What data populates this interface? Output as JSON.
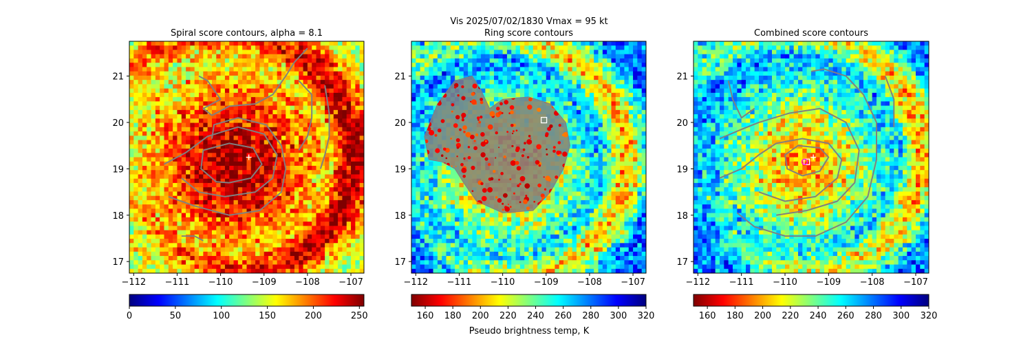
{
  "figure": {
    "suptitle_line1": "Vis  2025/07/02/1830    Vmax = 95 kt",
    "colorbar_label": "Pseudo brightness temp, K"
  },
  "colors": {
    "contour": "#808080",
    "marker": "#ffffff",
    "center_marker": "#ff00ff",
    "jet": [
      "#00007f",
      "#0000ff",
      "#007fff",
      "#00ffff",
      "#7fff7f",
      "#ffff00",
      "#ff7f00",
      "#ff0000",
      "#7f0000"
    ]
  },
  "chart_data": [
    {
      "type": "heatmap",
      "title": "Spiral score contours, alpha =  8.1",
      "xlim": [
        -112.1,
        -106.7
      ],
      "ylim": [
        16.75,
        21.75
      ],
      "xticks": [
        -112,
        -111,
        -110,
        -109,
        -108,
        -107
      ],
      "yticks": [
        17,
        18,
        19,
        20,
        21
      ],
      "xtick_labels": [
        "−112",
        "−111",
        "−110",
        "−109",
        "−108",
        "−107"
      ],
      "ytick_labels": [
        "17",
        "18",
        "19",
        "20",
        "21"
      ],
      "field": "inverted",
      "storm_center": [
        -109.7,
        19.1
      ],
      "markers": [
        {
          "symbol": "+",
          "lon": -109.35,
          "lat": 19.25
        }
      ],
      "contours": [
        [
          [
            -109.8,
            18.7
          ],
          [
            -109.3,
            18.8
          ],
          [
            -109.05,
            19.1
          ],
          [
            -109.25,
            19.45
          ],
          [
            -109.8,
            19.55
          ],
          [
            -110.4,
            19.4
          ],
          [
            -110.45,
            19.0
          ],
          [
            -110.1,
            18.72
          ],
          [
            -109.8,
            18.7
          ]
        ],
        [
          [
            -111.3,
            19.1
          ],
          [
            -110.8,
            19.35
          ],
          [
            -110.3,
            19.7
          ],
          [
            -109.6,
            19.9
          ],
          [
            -109.0,
            19.75
          ],
          [
            -108.7,
            19.3
          ],
          [
            -108.8,
            18.8
          ],
          [
            -109.2,
            18.5
          ],
          [
            -109.9,
            18.4
          ],
          [
            -110.5,
            18.5
          ],
          [
            -110.9,
            18.8
          ]
        ],
        [
          [
            -111.2,
            18.4
          ],
          [
            -110.6,
            18.2
          ],
          [
            -109.8,
            18.0
          ],
          [
            -109.1,
            18.1
          ],
          [
            -108.6,
            18.5
          ],
          [
            -108.5,
            19.0
          ],
          [
            -108.6,
            19.5
          ],
          [
            -108.95,
            19.95
          ],
          [
            -109.6,
            20.1
          ],
          [
            -110.15,
            19.95
          ],
          [
            -110.2,
            19.65
          ]
        ],
        [
          [
            -110.2,
            20.15
          ],
          [
            -109.8,
            20.35
          ],
          [
            -109.2,
            20.4
          ],
          [
            -108.8,
            20.6
          ],
          [
            -108.5,
            21.0
          ],
          [
            -108.3,
            21.3
          ],
          [
            -108.0,
            21.6
          ]
        ],
        [
          [
            -110.2,
            20.15
          ],
          [
            -110.4,
            20.3
          ],
          [
            -110.0,
            20.5
          ],
          [
            -110.3,
            20.9
          ],
          [
            -110.5,
            21.0
          ]
        ],
        [
          [
            -108.2,
            20.9
          ],
          [
            -107.9,
            20.6
          ],
          [
            -107.9,
            20.1
          ],
          [
            -108.0,
            19.7
          ],
          [
            -108.2,
            19.4
          ]
        ],
        [
          [
            -107.6,
            20.8
          ],
          [
            -107.5,
            20.2
          ],
          [
            -107.5,
            19.7
          ],
          [
            -107.6,
            19.3
          ],
          [
            -107.7,
            19.0
          ]
        ],
        [
          [
            -110.9,
            17.55
          ],
          [
            -110.6,
            17.55
          ],
          [
            -110.4,
            17.45
          ]
        ]
      ]
    },
    {
      "type": "heatmap",
      "title": "Ring score contours",
      "xlim": [
        -112.1,
        -106.7
      ],
      "ylim": [
        16.75,
        21.75
      ],
      "xticks": [
        -112,
        -111,
        -110,
        -109,
        -108,
        -107
      ],
      "yticks": [
        17,
        18,
        19,
        20,
        21
      ],
      "xtick_labels": [
        "−112",
        "−111",
        "−110",
        "−109",
        "−108",
        "−107"
      ],
      "ytick_labels": [
        "17",
        "18",
        "19",
        "20",
        "21"
      ],
      "field": "normal",
      "storm_center": [
        -109.9,
        19.0
      ],
      "markers": [
        {
          "symbol": "square",
          "lon": -109.05,
          "lat": 20.05
        }
      ],
      "ring_region": [
        [
          -111.7,
          19.2
        ],
        [
          -111.8,
          19.7
        ],
        [
          -111.5,
          20.4
        ],
        [
          -111.1,
          20.9
        ],
        [
          -110.7,
          21.0
        ],
        [
          -110.5,
          20.7
        ],
        [
          -110.3,
          20.3
        ],
        [
          -110.0,
          20.5
        ],
        [
          -109.4,
          20.55
        ],
        [
          -108.9,
          20.4
        ],
        [
          -108.55,
          20.0
        ],
        [
          -108.45,
          19.5
        ],
        [
          -108.6,
          19.0
        ],
        [
          -108.9,
          18.5
        ],
        [
          -109.3,
          18.1
        ],
        [
          -110.0,
          18.05
        ],
        [
          -110.6,
          18.3
        ],
        [
          -110.9,
          18.7
        ],
        [
          -111.1,
          19.0
        ],
        [
          -111.4,
          19.15
        ]
      ],
      "contours": []
    },
    {
      "type": "heatmap",
      "title": "Combined score contours",
      "xlim": [
        -112.1,
        -106.7
      ],
      "ylim": [
        16.75,
        21.75
      ],
      "xticks": [
        -112,
        -111,
        -110,
        -109,
        -108,
        -107
      ],
      "yticks": [
        17,
        18,
        19,
        20,
        21
      ],
      "xtick_labels": [
        "−112",
        "−111",
        "−110",
        "−109",
        "−108",
        "−107"
      ],
      "ytick_labels": [
        "17",
        "18",
        "19",
        "20",
        "21"
      ],
      "field": "normal",
      "storm_center": [
        -109.6,
        19.1
      ],
      "markers": [
        {
          "symbol": "+",
          "lon": -109.35,
          "lat": 19.25
        },
        {
          "symbol": "square",
          "lon": -109.5,
          "lat": 19.15
        },
        {
          "symbol": "circle",
          "lon": -109.55,
          "lat": 19.15
        }
      ],
      "contours": [
        [
          [
            -109.6,
            18.85
          ],
          [
            -109.2,
            18.95
          ],
          [
            -109.0,
            19.25
          ],
          [
            -109.2,
            19.45
          ],
          [
            -109.7,
            19.5
          ],
          [
            -110.0,
            19.3
          ],
          [
            -109.95,
            19.0
          ],
          [
            -109.6,
            18.85
          ]
        ],
        [
          [
            -111.5,
            18.8
          ],
          [
            -111.0,
            19.0
          ],
          [
            -110.6,
            19.3
          ],
          [
            -110.2,
            19.55
          ],
          [
            -109.6,
            19.65
          ],
          [
            -109.0,
            19.55
          ],
          [
            -108.7,
            19.2
          ],
          [
            -108.8,
            18.8
          ],
          [
            -109.3,
            18.4
          ],
          [
            -110.0,
            18.3
          ],
          [
            -110.6,
            18.5
          ]
        ],
        [
          [
            -111.5,
            19.65
          ],
          [
            -111.0,
            19.85
          ],
          [
            -110.6,
            20.0
          ],
          [
            -109.9,
            20.2
          ],
          [
            -109.2,
            20.3
          ],
          [
            -108.6,
            20.0
          ],
          [
            -108.3,
            19.4
          ],
          [
            -108.4,
            18.7
          ],
          [
            -108.8,
            18.3
          ],
          [
            -109.5,
            18.1
          ],
          [
            -110.2,
            18.0
          ]
        ],
        [
          [
            -111.1,
            18.05
          ],
          [
            -110.7,
            17.75
          ],
          [
            -110.0,
            17.55
          ],
          [
            -109.3,
            17.55
          ],
          [
            -108.6,
            17.85
          ],
          [
            -108.1,
            18.4
          ],
          [
            -107.9,
            19.2
          ],
          [
            -107.9,
            20.0
          ],
          [
            -108.2,
            20.6
          ],
          [
            -108.6,
            21.0
          ],
          [
            -109.1,
            21.15
          ],
          [
            -109.4,
            21.1
          ]
        ],
        [
          [
            -111.3,
            20.9
          ],
          [
            -111.2,
            20.5
          ],
          [
            -111.0,
            20.1
          ],
          [
            -110.7,
            20.3
          ]
        ],
        [
          [
            -107.5,
            19.9
          ],
          [
            -107.5,
            20.5
          ],
          [
            -107.7,
            21.0
          ]
        ]
      ]
    }
  ],
  "colorbars": [
    {
      "min": 0,
      "max": 255,
      "ticks": [
        0,
        50,
        100,
        150,
        200,
        250
      ],
      "tick_labels": [
        "0",
        "50",
        "100",
        "150",
        "200",
        "250"
      ],
      "reversed": false
    },
    {
      "min": 150,
      "max": 320,
      "ticks": [
        160,
        180,
        200,
        220,
        240,
        260,
        280,
        300,
        320
      ],
      "tick_labels": [
        "160",
        "180",
        "200",
        "220",
        "240",
        "260",
        "280",
        "300",
        "320"
      ],
      "reversed": true,
      "show_label": true
    },
    {
      "min": 150,
      "max": 320,
      "ticks": [
        160,
        180,
        200,
        220,
        240,
        260,
        280,
        300,
        320
      ],
      "tick_labels": [
        "160",
        "180",
        "200",
        "220",
        "240",
        "260",
        "280",
        "300",
        "320"
      ],
      "reversed": true
    }
  ]
}
